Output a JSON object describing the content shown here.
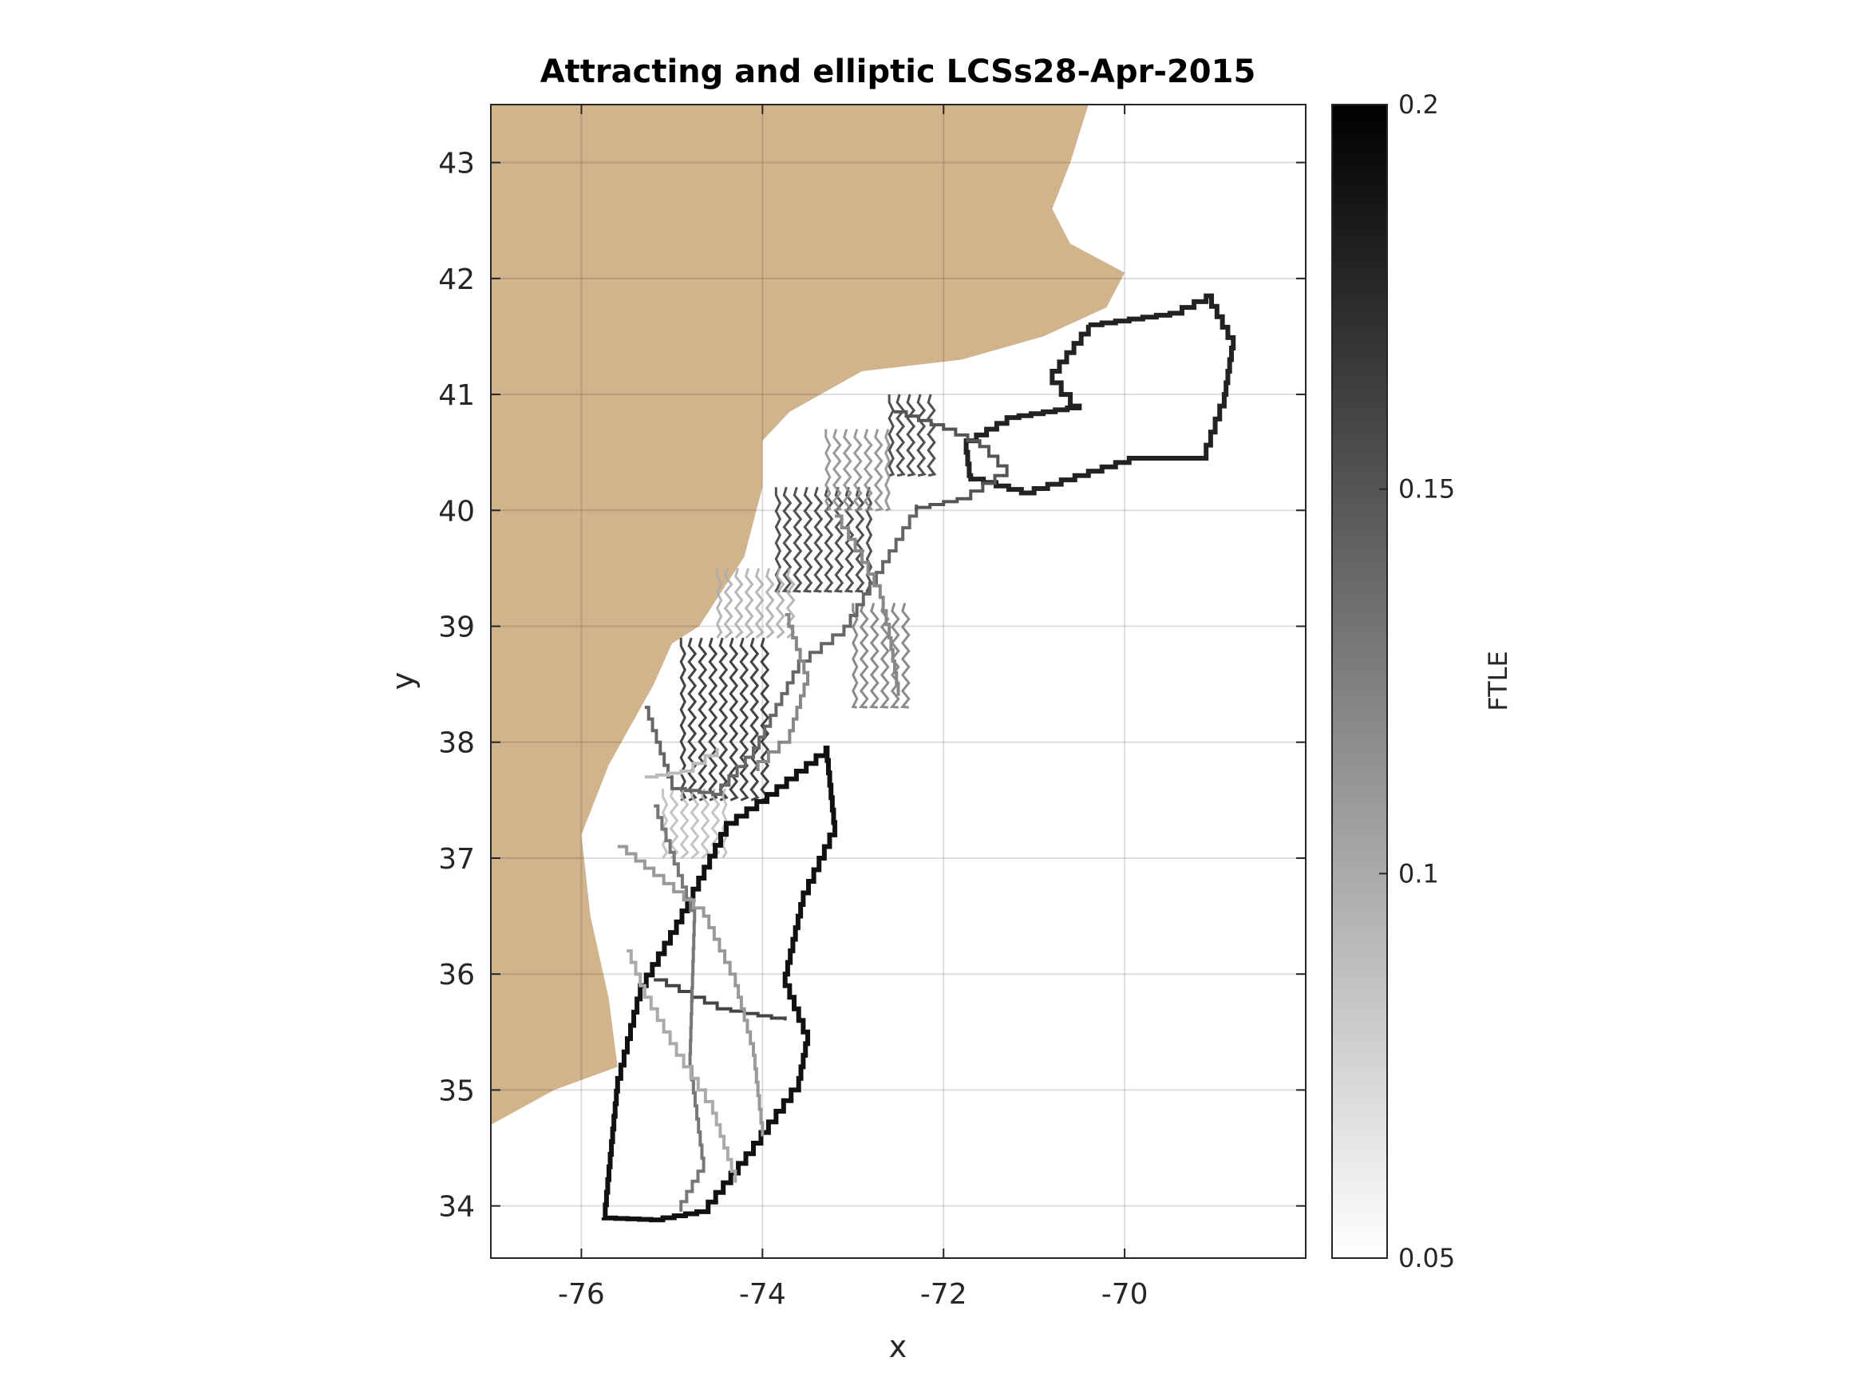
{
  "chart_data": {
    "type": "heatmap",
    "title": "Attracting and elliptic LCSs28-Apr-2015",
    "xlabel": "x",
    "ylabel": "y",
    "xlim": [
      -77,
      -68
    ],
    "ylim": [
      33.55,
      43.5
    ],
    "xticks": [
      -76,
      -74,
      -72,
      -70
    ],
    "xtick_labels": [
      "-76",
      "-74",
      "-72",
      "-70"
    ],
    "yticks": [
      34,
      35,
      36,
      37,
      38,
      39,
      40,
      41,
      42,
      43
    ],
    "ytick_labels": [
      "34",
      "35",
      "36",
      "37",
      "38",
      "39",
      "40",
      "41",
      "42",
      "43"
    ],
    "grid": true,
    "colorbar": {
      "label": "FTLE",
      "limits": [
        0.05,
        0.2
      ],
      "ticks": [
        0.05,
        0.1,
        0.15,
        0.2
      ],
      "tick_labels": [
        "0.05",
        "0.1",
        "0.15",
        "0.2"
      ],
      "colormap": "gray-reversed"
    },
    "land_color": "#D2B48C",
    "coastline": [
      [
        -77.0,
        43.5
      ],
      [
        -70.4,
        43.5
      ],
      [
        -70.6,
        43.0
      ],
      [
        -70.8,
        42.6
      ],
      [
        -70.6,
        42.3
      ],
      [
        -70.0,
        42.05
      ],
      [
        -70.2,
        41.75
      ],
      [
        -70.9,
        41.5
      ],
      [
        -71.8,
        41.3
      ],
      [
        -72.9,
        41.2
      ],
      [
        -73.7,
        40.85
      ],
      [
        -74.0,
        40.6
      ],
      [
        -74.0,
        40.2
      ],
      [
        -74.2,
        39.6
      ],
      [
        -74.7,
        39.0
      ],
      [
        -75.0,
        38.85
      ],
      [
        -75.2,
        38.5
      ],
      [
        -75.7,
        37.8
      ],
      [
        -76.0,
        37.2
      ],
      [
        -75.9,
        36.5
      ],
      [
        -75.7,
        35.8
      ],
      [
        -75.6,
        35.2
      ],
      [
        -76.3,
        35.0
      ],
      [
        -77.0,
        34.7
      ]
    ],
    "lcs_curves": [
      {
        "ftle": 0.19,
        "points": [
          [
            -75.75,
            33.9
          ],
          [
            -75.6,
            35.1
          ],
          [
            -75.35,
            35.9
          ],
          [
            -74.95,
            36.45
          ],
          [
            -74.4,
            37.3
          ],
          [
            -73.95,
            37.55
          ],
          [
            -73.3,
            37.95
          ],
          [
            -73.2,
            37.2
          ],
          [
            -73.55,
            36.6
          ],
          [
            -73.75,
            35.9
          ],
          [
            -73.5,
            35.4
          ],
          [
            -73.6,
            35.0
          ],
          [
            -74.1,
            34.45
          ],
          [
            -74.6,
            33.95
          ],
          [
            -75.1,
            33.88
          ],
          [
            -75.75,
            33.9
          ]
        ]
      },
      {
        "ftle": 0.18,
        "points": [
          [
            -70.4,
            41.6
          ],
          [
            -69.5,
            41.7
          ],
          [
            -69.1,
            41.85
          ],
          [
            -68.8,
            41.4
          ],
          [
            -68.9,
            40.9
          ],
          [
            -69.1,
            40.45
          ],
          [
            -69.8,
            40.45
          ],
          [
            -70.4,
            40.3
          ],
          [
            -71.0,
            40.15
          ],
          [
            -71.7,
            40.3
          ],
          [
            -71.75,
            40.6
          ],
          [
            -71.3,
            40.8
          ],
          [
            -70.5,
            40.9
          ],
          [
            -70.8,
            41.2
          ],
          [
            -70.4,
            41.6
          ]
        ]
      },
      {
        "ftle": 0.16,
        "points": [
          [
            -75.2,
            35.95
          ],
          [
            -74.5,
            35.7
          ],
          [
            -73.75,
            35.6
          ]
        ]
      },
      {
        "ftle": 0.14,
        "points": [
          [
            -75.3,
            38.3
          ],
          [
            -75.0,
            37.6
          ],
          [
            -74.55,
            37.55
          ],
          [
            -74.1,
            37.95
          ],
          [
            -73.6,
            38.7
          ],
          [
            -73.1,
            39.0
          ],
          [
            -72.6,
            39.65
          ],
          [
            -72.3,
            40.05
          ]
        ]
      },
      {
        "ftle": 0.15,
        "points": [
          [
            -72.55,
            40.85
          ],
          [
            -72.0,
            40.7
          ],
          [
            -71.6,
            40.55
          ],
          [
            -71.3,
            40.3
          ],
          [
            -71.7,
            40.1
          ],
          [
            -72.3,
            40.0
          ]
        ]
      },
      {
        "ftle": 0.13,
        "points": [
          [
            -75.2,
            37.45
          ],
          [
            -74.75,
            36.45
          ],
          [
            -74.8,
            35.2
          ],
          [
            -74.65,
            34.3
          ],
          [
            -74.9,
            33.95
          ]
        ]
      },
      {
        "ftle": 0.11,
        "points": [
          [
            -75.6,
            37.1
          ],
          [
            -75.2,
            36.85
          ],
          [
            -74.65,
            36.5
          ],
          [
            -74.3,
            35.9
          ],
          [
            -74.1,
            35.3
          ],
          [
            -74.0,
            34.6
          ]
        ]
      },
      {
        "ftle": 0.12,
        "points": [
          [
            -73.75,
            39.1
          ],
          [
            -73.5,
            38.5
          ],
          [
            -73.7,
            38.0
          ],
          [
            -74.05,
            37.75
          ]
        ]
      },
      {
        "ftle": 0.1,
        "points": [
          [
            -75.5,
            36.2
          ],
          [
            -75.3,
            35.8
          ],
          [
            -74.95,
            35.3
          ],
          [
            -74.55,
            34.8
          ],
          [
            -74.3,
            34.2
          ]
        ]
      },
      {
        "ftle": 0.12,
        "points": [
          [
            -73.2,
            39.95
          ],
          [
            -72.9,
            39.55
          ],
          [
            -72.7,
            39.25
          ],
          [
            -72.6,
            38.9
          ],
          [
            -72.5,
            38.4
          ]
        ]
      },
      {
        "ftle": 0.09,
        "points": [
          [
            -75.3,
            37.7
          ],
          [
            -74.9,
            37.75
          ],
          [
            -74.5,
            37.95
          ]
        ]
      }
    ],
    "dense_patches": [
      {
        "ftle": 0.18,
        "xlim": [
          -74.9,
          -73.9
        ],
        "ylim": [
          37.5,
          38.9
        ]
      },
      {
        "ftle": 0.17,
        "xlim": [
          -73.85,
          -72.8
        ],
        "ylim": [
          39.3,
          40.2
        ]
      },
      {
        "ftle": 0.17,
        "xlim": [
          -72.6,
          -72.1
        ],
        "ylim": [
          40.3,
          41.0
        ]
      },
      {
        "ftle": 0.13,
        "xlim": [
          -73.0,
          -72.35
        ],
        "ylim": [
          38.3,
          39.2
        ]
      },
      {
        "ftle": 0.12,
        "xlim": [
          -73.3,
          -72.6
        ],
        "ylim": [
          40.0,
          40.7
        ]
      },
      {
        "ftle": 0.09,
        "xlim": [
          -75.1,
          -74.4
        ],
        "ylim": [
          37.0,
          37.6
        ]
      },
      {
        "ftle": 0.1,
        "xlim": [
          -74.5,
          -73.6
        ],
        "ylim": [
          38.9,
          39.5
        ]
      }
    ]
  }
}
